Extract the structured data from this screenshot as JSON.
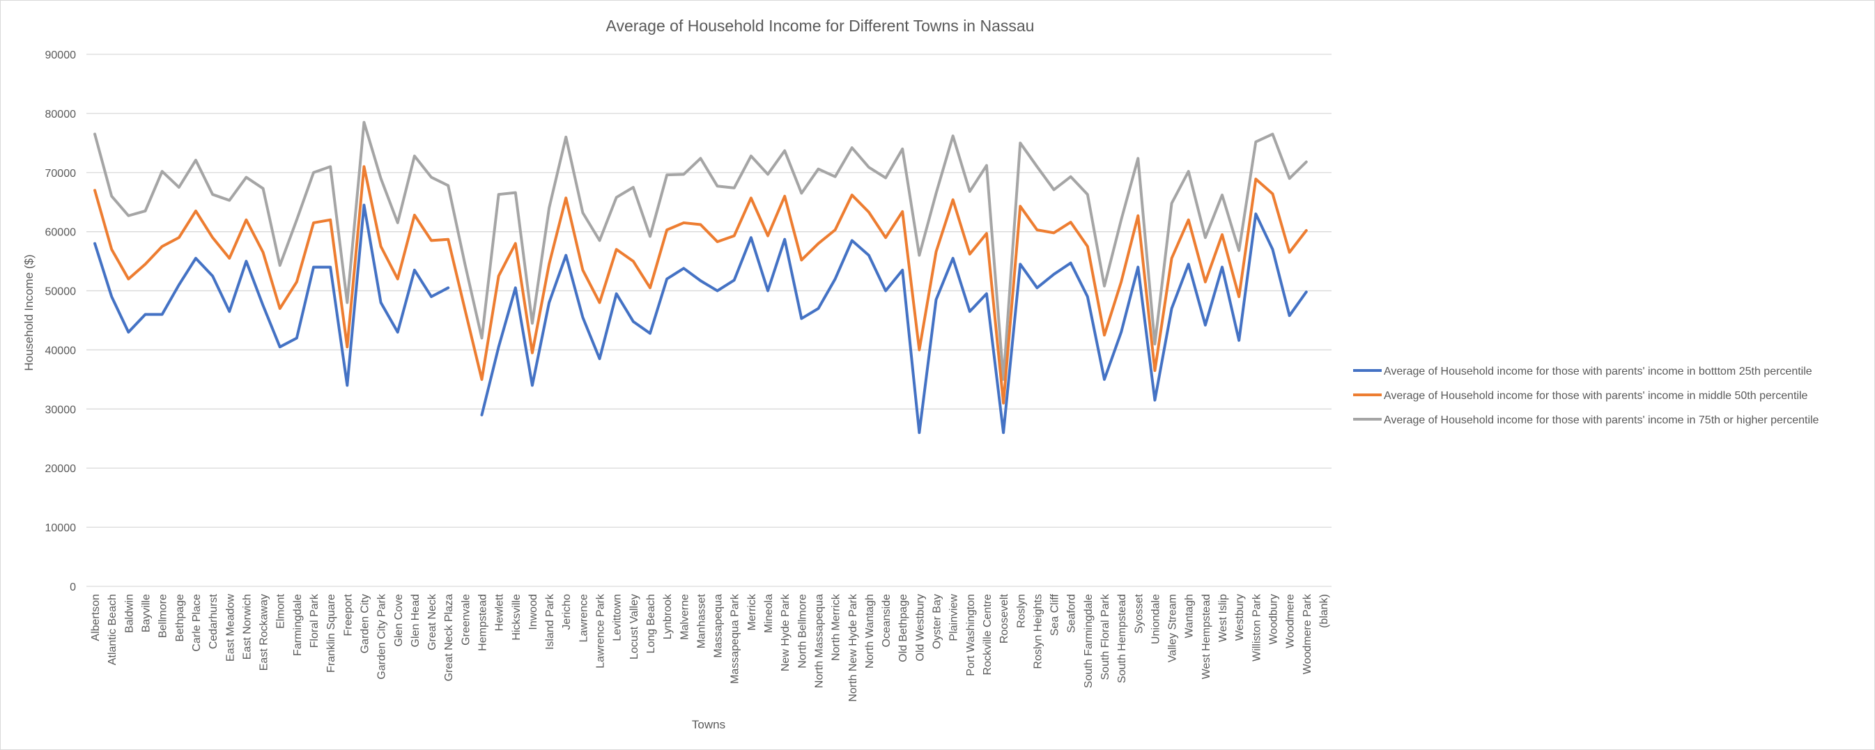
{
  "chart_data": {
    "type": "line",
    "title": "Average of Household Income for Different Towns in Nassau",
    "xlabel": "Towns",
    "ylabel": "Household Income ($)",
    "ylim": [
      0,
      90000
    ],
    "ytick_step": 10000,
    "yticks": [
      "0",
      "10000",
      "20000",
      "30000",
      "40000",
      "50000",
      "60000",
      "70000",
      "80000",
      "90000"
    ],
    "grid": true,
    "legend_position": "right",
    "categories": [
      "Albertson",
      "Atlantic Beach",
      "Baldwin",
      "Bayville",
      "Bellmore",
      "Bethpage",
      "Carle Place",
      "Cedarhurst",
      "East Meadow",
      "East Norwich",
      "East Rockaway",
      "Elmont",
      "Farmingdale",
      "Floral Park",
      "Franklin Square",
      "Freeport",
      "Garden City",
      "Garden City Park",
      "Glen Cove",
      "Glen Head",
      "Great Neck",
      "Great Neck Plaza",
      "Greenvale",
      "Hempstead",
      "Hewlett",
      "Hicksville",
      "Inwood",
      "Island Park",
      "Jericho",
      "Lawrence",
      "Lawrence Park",
      "Levittown",
      "Locust Valley",
      "Long Beach",
      "Lynbrook",
      "Malverne",
      "Manhasset",
      "Massapequa",
      "Massapequa Park",
      "Merrick",
      "Mineola",
      "New Hyde Park",
      "North Bellmore",
      "North Massapequa",
      "North Merrick",
      "North New Hyde Park",
      "North Wantagh",
      "Oceanside",
      "Old Bethpage",
      "Old Westbury",
      "Oyster Bay",
      "Plainview",
      "Port Washington",
      "Rockville Centre",
      "Roosevelt",
      "Roslyn",
      "Roslyn Heights",
      "Sea Cliff",
      "Seaford",
      "South Farmingdale",
      "South Floral Park",
      "South Hempstead",
      "Syosset",
      "Uniondale",
      "Valley Stream",
      "Wantagh",
      "West Hempstead",
      "West Islip",
      "Westbury",
      "Williston Park",
      "Woodbury",
      "Woodmere",
      "Woodmere Park",
      "(blank)"
    ],
    "series": [
      {
        "name": "Average of Household income for those with parents' income in botttom 25th percentile",
        "color": "#4472C4",
        "values": [
          58000,
          49000,
          43000,
          46000,
          46000,
          51000,
          55500,
          52500,
          46500,
          55000,
          47500,
          40500,
          42000,
          54000,
          54000,
          34000,
          64500,
          48000,
          43000,
          53500,
          49000,
          50500,
          null,
          29000,
          40500,
          50500,
          34000,
          48000,
          56000,
          45500,
          38500,
          49500,
          44800,
          42800,
          52000,
          53800,
          51700,
          50000,
          51800,
          59000,
          50000,
          58700,
          45300,
          47000,
          52000,
          58500,
          56000,
          50000,
          53500,
          26000,
          48500,
          55500,
          46500,
          49500,
          26000,
          54500,
          50500,
          52800,
          54700,
          49000,
          35000,
          43000,
          54000,
          31500,
          47000,
          54500,
          44200,
          54000,
          41600,
          63000,
          57000,
          45800,
          49800,
          null
        ]
      },
      {
        "name": "Average of Household income for those with parents' income in middle 50th percentile",
        "color": "#ED7D31",
        "values": [
          67000,
          57000,
          52000,
          54500,
          57500,
          59000,
          63500,
          59000,
          55500,
          62000,
          56500,
          47000,
          51500,
          61500,
          62000,
          40500,
          71000,
          57500,
          52000,
          62800,
          58500,
          58700,
          46800,
          35000,
          52500,
          58000,
          39500,
          54500,
          65700,
          53500,
          48000,
          57000,
          55000,
          50500,
          60300,
          61500,
          61200,
          58300,
          59300,
          65700,
          59300,
          66000,
          55200,
          58000,
          60300,
          66200,
          63300,
          59000,
          63400,
          40000,
          56600,
          65400,
          56200,
          59700,
          31000,
          64300,
          60300,
          59800,
          61600,
          57500,
          42500,
          51500,
          62700,
          36500,
          55500,
          62000,
          51500,
          59500,
          49000,
          68900,
          66400,
          56500,
          60200,
          null
        ]
      },
      {
        "name": "Average of Household income for those with parents' income in 75th or higher percentile",
        "color": "#A5A5A5",
        "values": [
          76500,
          66000,
          62700,
          63500,
          70200,
          67500,
          72100,
          66300,
          65300,
          69200,
          67300,
          54300,
          62000,
          70000,
          71000,
          48000,
          78500,
          69000,
          61500,
          72800,
          69200,
          67800,
          54500,
          42000,
          66300,
          66600,
          44500,
          64000,
          76000,
          63200,
          58500,
          65800,
          67500,
          59200,
          69600,
          69700,
          72400,
          67700,
          67400,
          72800,
          69700,
          73700,
          66500,
          70600,
          69300,
          74200,
          70900,
          69100,
          74000,
          56000,
          66500,
          76200,
          66800,
          71200,
          35000,
          75000,
          71000,
          67100,
          69300,
          66300,
          50800,
          62000,
          72400,
          41000,
          64800,
          70200,
          59000,
          66200,
          56800,
          75200,
          76500,
          69000,
          71800,
          null
        ]
      }
    ]
  }
}
